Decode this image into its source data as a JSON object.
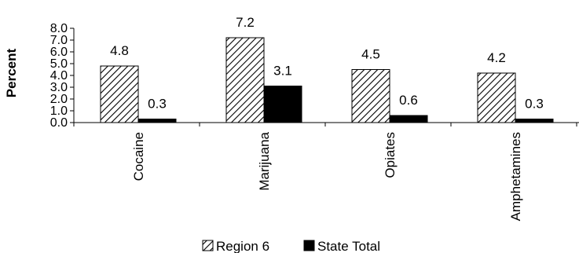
{
  "chart_data": {
    "type": "bar",
    "categories": [
      "Cocaine",
      "Marijuana",
      "Opiates",
      "Amphetamines"
    ],
    "series": [
      {
        "name": "Region 6",
        "values": [
          4.8,
          7.2,
          4.5,
          4.2
        ],
        "pattern": "diagonal-hatch"
      },
      {
        "name": "State Total",
        "values": [
          0.3,
          3.1,
          0.6,
          0.3
        ],
        "color": "#000000"
      }
    ],
    "data_labels": {
      "Region 6": [
        "4.8",
        "7.2",
        "4.5",
        "4.2"
      ],
      "State Total": [
        "0.3",
        "3.1",
        "0.6",
        "0.3"
      ]
    },
    "ylabel": "Percent",
    "ylim": [
      0,
      8
    ],
    "yticks": [
      "0.0",
      "1.0",
      "2.0",
      "3.0",
      "4.0",
      "5.0",
      "6.0",
      "7.0",
      "8.0"
    ],
    "grid": false,
    "legend_position": "bottom"
  }
}
